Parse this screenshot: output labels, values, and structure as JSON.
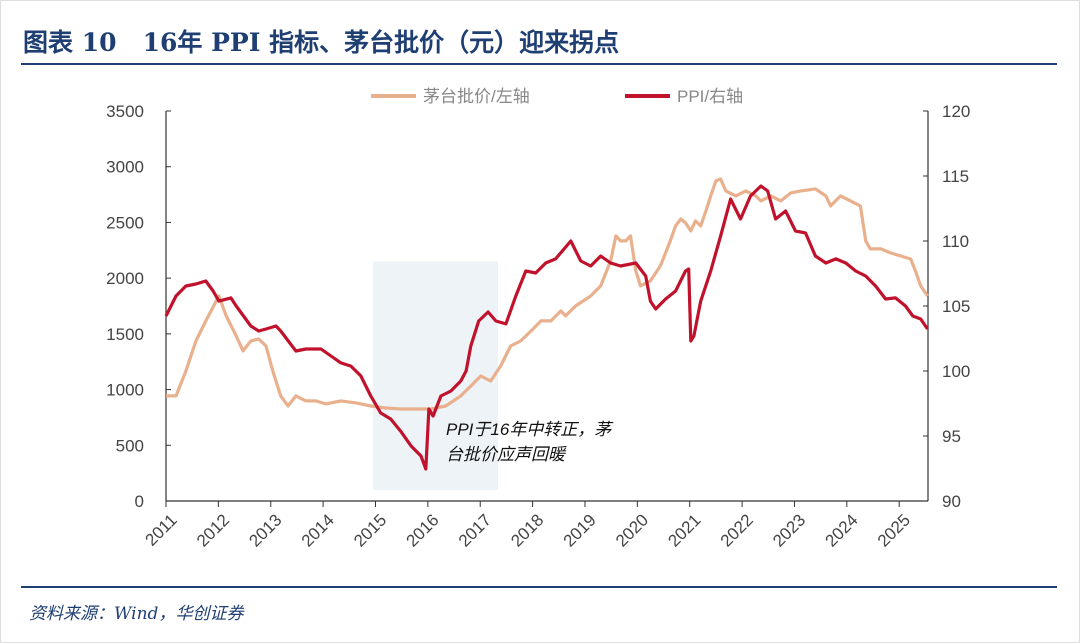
{
  "title": "图表 10   16年 PPI 指标、茅台批价（元）迎来拐点",
  "source": "资料来源：Wind，华创证券",
  "chart_data": {
    "type": "line",
    "title": "16年 PPI 指标、茅台批价（元）迎来拐点",
    "x_ticks": [
      "2011",
      "2012",
      "2013",
      "2014",
      "2015",
      "2016",
      "2017",
      "2018",
      "2019",
      "2020",
      "2021",
      "2022",
      "2023",
      "2024",
      "2025"
    ],
    "xlim": [
      2011,
      2025.55
    ],
    "left_axis": {
      "ylim": [
        0,
        3500
      ],
      "ticks": [
        "0",
        "500",
        "1000",
        "1500",
        "2000",
        "2500",
        "3000",
        "3500"
      ]
    },
    "right_axis": {
      "ylim": [
        90,
        120
      ],
      "ticks": [
        "90",
        "95",
        "100",
        "105",
        "110",
        "115",
        "120"
      ]
    },
    "legend": "top-center",
    "annotation": {
      "lines": [
        "PPI于16年中转正，茅",
        "台批价应声回暖"
      ],
      "shaded_x": [
        2014.95,
        2017.34
      ],
      "shaded_y_left": [
        100,
        2150
      ]
    },
    "series": [
      {
        "name": "茅台批价/左轴",
        "axis": "left",
        "color": "#e8b08c",
        "x": [
          2011.0,
          2011.19,
          2011.38,
          2011.57,
          2011.76,
          2012.01,
          2012.15,
          2012.34,
          2012.47,
          2012.62,
          2012.77,
          2012.91,
          2013.04,
          2013.19,
          2013.33,
          2013.48,
          2013.67,
          2013.86,
          2014.05,
          2014.34,
          2014.63,
          2014.91,
          2015.2,
          2015.48,
          2016.06,
          2016.34,
          2016.63,
          2016.82,
          2017.01,
          2017.2,
          2017.39,
          2017.58,
          2017.77,
          2017.97,
          2018.16,
          2018.35,
          2018.54,
          2018.63,
          2018.82,
          2019.11,
          2019.3,
          2019.49,
          2019.59,
          2019.68,
          2019.78,
          2019.87,
          2019.97,
          2020.06,
          2020.25,
          2020.44,
          2020.63,
          2020.73,
          2020.83,
          2020.92,
          2021.02,
          2021.11,
          2021.21,
          2021.31,
          2021.4,
          2021.5,
          2021.59,
          2021.69,
          2021.88,
          2022.07,
          2022.26,
          2022.36,
          2022.55,
          2022.74,
          2022.93,
          2023.12,
          2023.4,
          2023.6,
          2023.69,
          2023.88,
          2024.07,
          2024.26,
          2024.36,
          2024.45,
          2024.65,
          2024.84,
          2025.03,
          2025.22,
          2025.31,
          2025.41,
          2025.54
        ],
        "values": [
          943,
          943,
          1167,
          1436,
          1616,
          1840,
          1661,
          1481,
          1347,
          1436,
          1454,
          1391,
          1167,
          943,
          853,
          943,
          898,
          898,
          871,
          898,
          880,
          853,
          835,
          826,
          826,
          853,
          943,
          1032,
          1122,
          1077,
          1212,
          1391,
          1436,
          1526,
          1616,
          1616,
          1706,
          1661,
          1750,
          1840,
          1930,
          2154,
          2379,
          2334,
          2334,
          2379,
          2065,
          1930,
          1975,
          2110,
          2334,
          2469,
          2531,
          2496,
          2424,
          2514,
          2469,
          2603,
          2738,
          2873,
          2890,
          2783,
          2738,
          2783,
          2738,
          2693,
          2738,
          2693,
          2765,
          2783,
          2801,
          2738,
          2648,
          2738,
          2693,
          2648,
          2334,
          2262,
          2262,
          2226,
          2199,
          2172,
          2065,
          1930,
          1840
        ]
      },
      {
        "name": "PPI/右轴",
        "axis": "right",
        "color": "#c0122c",
        "x": [
          2011.0,
          2011.19,
          2011.38,
          2011.57,
          2011.76,
          2011.9,
          2012.01,
          2012.24,
          2012.34,
          2012.62,
          2012.77,
          2012.91,
          2013.1,
          2013.19,
          2013.48,
          2013.67,
          2013.96,
          2014.15,
          2014.34,
          2014.53,
          2014.72,
          2014.91,
          2015.1,
          2015.29,
          2015.48,
          2015.68,
          2015.87,
          2015.96,
          2016.02,
          2016.1,
          2016.25,
          2016.44,
          2016.63,
          2016.73,
          2016.82,
          2016.97,
          2017.15,
          2017.3,
          2017.49,
          2017.68,
          2017.87,
          2018.06,
          2018.25,
          2018.44,
          2018.73,
          2018.92,
          2019.11,
          2019.3,
          2019.49,
          2019.68,
          2019.97,
          2020.16,
          2020.25,
          2020.35,
          2020.54,
          2020.73,
          2020.92,
          2020.98,
          2021.02,
          2021.08,
          2021.21,
          2021.4,
          2021.59,
          2021.78,
          2021.97,
          2022.16,
          2022.36,
          2022.49,
          2022.64,
          2022.83,
          2023.02,
          2023.21,
          2023.4,
          2023.6,
          2023.79,
          2023.98,
          2024.17,
          2024.36,
          2024.55,
          2024.74,
          2024.93,
          2025.12,
          2025.26,
          2025.41,
          2025.54
        ],
        "values": [
          104.23,
          105.77,
          106.54,
          106.69,
          106.92,
          106.15,
          105.38,
          105.62,
          105.0,
          103.46,
          103.08,
          103.23,
          103.46,
          103.08,
          101.54,
          101.69,
          101.69,
          101.15,
          100.62,
          100.38,
          99.62,
          98.08,
          96.77,
          96.31,
          95.38,
          94.23,
          93.46,
          92.46,
          97.08,
          96.54,
          98.08,
          98.46,
          99.23,
          100.0,
          101.92,
          103.85,
          104.54,
          103.85,
          103.62,
          105.77,
          107.69,
          107.54,
          108.31,
          108.62,
          110.0,
          108.46,
          108.08,
          108.85,
          108.31,
          108.08,
          108.31,
          107.31,
          105.38,
          104.77,
          105.54,
          106.15,
          107.69,
          107.85,
          102.31,
          102.69,
          105.38,
          107.69,
          110.38,
          113.23,
          111.69,
          113.46,
          114.23,
          113.85,
          111.69,
          112.31,
          110.77,
          110.62,
          108.85,
          108.31,
          108.62,
          108.31,
          107.69,
          107.31,
          106.54,
          105.54,
          105.62,
          105.0,
          104.23,
          104.0,
          103.23
        ]
      }
    ]
  }
}
